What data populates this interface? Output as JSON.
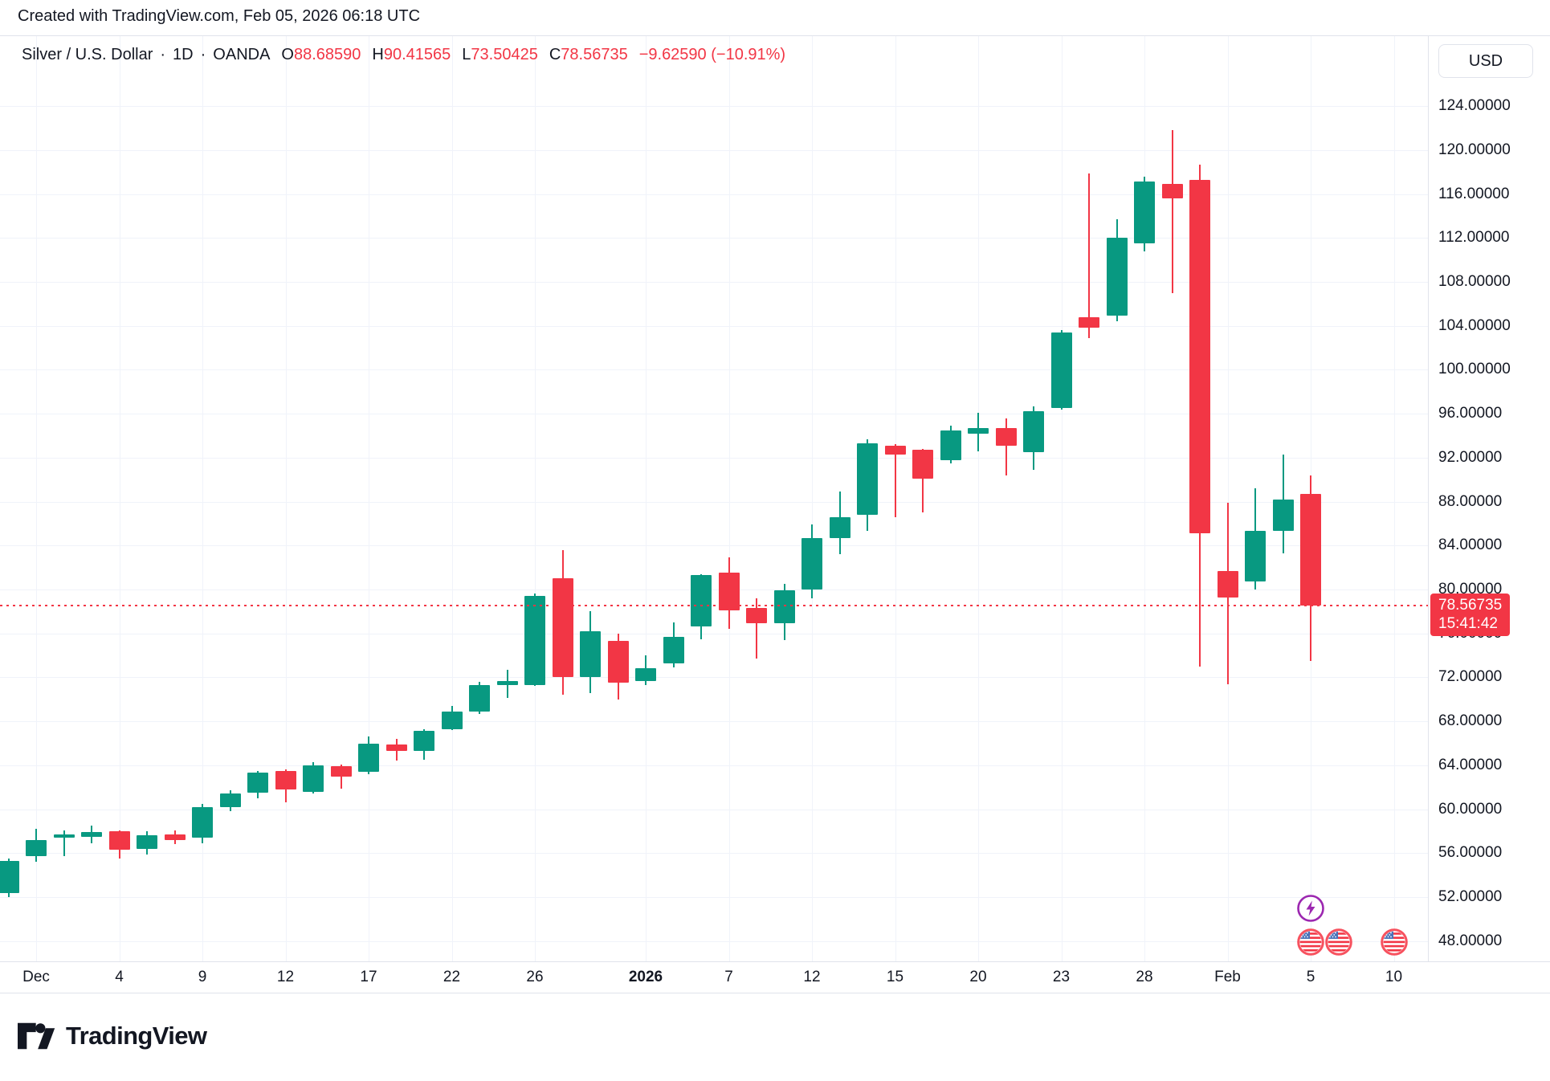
{
  "watermark": "Created with TradingView.com, Feb 05, 2026 06:18 UTC",
  "legend": {
    "title": "Silver / U.S. Dollar",
    "separator": "·",
    "interval": "1D",
    "exchange": "OANDA",
    "ohlc": [
      {
        "label": "O",
        "value": "88.68590"
      },
      {
        "label": "H",
        "value": "90.41565"
      },
      {
        "label": "L",
        "value": "73.50425"
      },
      {
        "label": "C",
        "value": "78.56735"
      }
    ],
    "change": "−9.62590 (−10.91%)"
  },
  "price_axis": {
    "currency_button": "USD",
    "labels": [
      "124.00000",
      "120.00000",
      "116.00000",
      "112.00000",
      "108.00000",
      "104.00000",
      "100.00000",
      "96.00000",
      "92.00000",
      "88.00000",
      "84.00000",
      "80.00000",
      "76.00000",
      "72.00000",
      "68.00000",
      "64.00000",
      "60.00000",
      "56.00000",
      "52.00000",
      "48.00000"
    ],
    "last_price_label": {
      "price": "78.56735",
      "countdown": "15:41:42"
    }
  },
  "time_axis": {
    "ticks": [
      {
        "label": "Dec",
        "index": 0,
        "bold": false
      },
      {
        "label": "4",
        "index": 3,
        "bold": false
      },
      {
        "label": "9",
        "index": 6,
        "bold": false
      },
      {
        "label": "12",
        "index": 9,
        "bold": false
      },
      {
        "label": "17",
        "index": 12,
        "bold": false
      },
      {
        "label": "22",
        "index": 15,
        "bold": false
      },
      {
        "label": "26",
        "index": 18,
        "bold": false
      },
      {
        "label": "2026",
        "index": 22,
        "bold": true
      },
      {
        "label": "7",
        "index": 25,
        "bold": false
      },
      {
        "label": "12",
        "index": 28,
        "bold": false
      },
      {
        "label": "15",
        "index": 31,
        "bold": false
      },
      {
        "label": "20",
        "index": 34,
        "bold": false
      },
      {
        "label": "23",
        "index": 37,
        "bold": false
      },
      {
        "label": "28",
        "index": 40,
        "bold": false
      },
      {
        "label": "Feb",
        "index": 43,
        "bold": false
      },
      {
        "label": "5",
        "index": 46,
        "bold": false
      },
      {
        "label": "10",
        "index": 49,
        "bold": false
      }
    ]
  },
  "event_markers": [
    {
      "icon": "lightning-icon",
      "index": 46,
      "row": "upper"
    },
    {
      "icon": "us-flag-icon",
      "index": 46,
      "row": "lower"
    },
    {
      "icon": "us-flag-icon",
      "index": 47,
      "row": "lower"
    },
    {
      "icon": "us-flag-icon",
      "index": 49,
      "row": "lower"
    }
  ],
  "logo_text": "TradingView",
  "colors": {
    "up": "#089981",
    "down": "#F23645",
    "grid": "#F0F3FA",
    "axis_text": "#131722",
    "border": "#E0E3EB",
    "accent_red": "#F23645",
    "event_purple": "#9C27B0",
    "flag_ring": "#F7525F",
    "flag_blue": "#4A72B8"
  },
  "chart_data": {
    "type": "candlestick",
    "title": "Silver / U.S. Dollar",
    "interval": "1D",
    "exchange": "OANDA",
    "grid": true,
    "legend_position": "top-left",
    "ylim": [
      46.2,
      130.4
    ],
    "price_line": {
      "value": 78.56735,
      "countdown": "15:41:42"
    },
    "last_bar": {
      "open": 88.6859,
      "high": 90.41565,
      "low": 73.50425,
      "close": 78.56735,
      "change": -9.6259,
      "change_pct": -10.91
    },
    "candles": [
      {
        "date": "Nov 28",
        "o": 52.4,
        "h": 55.5,
        "l": 52.0,
        "c": 55.3
      },
      {
        "date": "Dec 1",
        "o": 55.7,
        "h": 58.2,
        "l": 55.2,
        "c": 57.2
      },
      {
        "date": "Dec 2",
        "o": 57.4,
        "h": 58.1,
        "l": 55.7,
        "c": 57.7
      },
      {
        "date": "Dec 3",
        "o": 57.5,
        "h": 58.5,
        "l": 56.9,
        "c": 57.9
      },
      {
        "date": "Dec 4",
        "o": 58.0,
        "h": 58.1,
        "l": 55.5,
        "c": 56.3
      },
      {
        "date": "Dec 5",
        "o": 56.4,
        "h": 58.0,
        "l": 55.9,
        "c": 57.6
      },
      {
        "date": "Dec 8",
        "o": 57.7,
        "h": 58.1,
        "l": 56.8,
        "c": 57.2
      },
      {
        "date": "Dec 9",
        "o": 57.4,
        "h": 60.5,
        "l": 56.9,
        "c": 60.2
      },
      {
        "date": "Dec 10",
        "o": 60.2,
        "h": 61.7,
        "l": 59.8,
        "c": 61.4
      },
      {
        "date": "Dec 11",
        "o": 61.5,
        "h": 63.5,
        "l": 61.0,
        "c": 63.3
      },
      {
        "date": "Dec 12",
        "o": 63.5,
        "h": 63.6,
        "l": 60.6,
        "c": 61.8
      },
      {
        "date": "Dec 15",
        "o": 61.6,
        "h": 64.3,
        "l": 61.4,
        "c": 64.0
      },
      {
        "date": "Dec 16",
        "o": 63.9,
        "h": 64.1,
        "l": 61.9,
        "c": 63.0
      },
      {
        "date": "Dec 17",
        "o": 63.4,
        "h": 66.6,
        "l": 63.2,
        "c": 66.0
      },
      {
        "date": "Dec 18",
        "o": 65.9,
        "h": 66.4,
        "l": 64.4,
        "c": 65.3
      },
      {
        "date": "Dec 19",
        "o": 65.3,
        "h": 67.3,
        "l": 64.5,
        "c": 67.1
      },
      {
        "date": "Dec 22",
        "o": 67.3,
        "h": 69.4,
        "l": 67.2,
        "c": 68.9
      },
      {
        "date": "Dec 23",
        "o": 68.9,
        "h": 71.6,
        "l": 68.7,
        "c": 71.3
      },
      {
        "date": "Dec 24",
        "o": 71.3,
        "h": 72.7,
        "l": 70.1,
        "c": 71.7
      },
      {
        "date": "Dec 26",
        "o": 71.3,
        "h": 79.6,
        "l": 71.2,
        "c": 79.4
      },
      {
        "date": "Dec 29",
        "o": 81.0,
        "h": 83.6,
        "l": 70.4,
        "c": 72.0
      },
      {
        "date": "Dec 30",
        "o": 72.0,
        "h": 78.0,
        "l": 70.6,
        "c": 76.2
      },
      {
        "date": "Dec 31",
        "o": 75.3,
        "h": 76.0,
        "l": 70.0,
        "c": 71.5
      },
      {
        "date": "Jan 2",
        "o": 71.7,
        "h": 74.0,
        "l": 71.3,
        "c": 72.8
      },
      {
        "date": "Jan 5",
        "o": 73.3,
        "h": 77.0,
        "l": 72.9,
        "c": 75.7
      },
      {
        "date": "Jan 6",
        "o": 76.6,
        "h": 81.4,
        "l": 75.5,
        "c": 81.3
      },
      {
        "date": "Jan 7",
        "o": 81.5,
        "h": 82.9,
        "l": 76.4,
        "c": 78.1
      },
      {
        "date": "Jan 8",
        "o": 78.3,
        "h": 79.2,
        "l": 73.7,
        "c": 76.9
      },
      {
        "date": "Jan 9",
        "o": 76.9,
        "h": 80.5,
        "l": 75.4,
        "c": 79.9
      },
      {
        "date": "Jan 12",
        "o": 80.0,
        "h": 85.9,
        "l": 79.2,
        "c": 84.7
      },
      {
        "date": "Jan 13",
        "o": 84.7,
        "h": 88.9,
        "l": 83.2,
        "c": 86.6
      },
      {
        "date": "Jan 14",
        "o": 86.8,
        "h": 93.7,
        "l": 85.3,
        "c": 93.3
      },
      {
        "date": "Jan 15",
        "o": 93.1,
        "h": 93.2,
        "l": 86.6,
        "c": 92.3
      },
      {
        "date": "Jan 16",
        "o": 92.7,
        "h": 92.8,
        "l": 87.0,
        "c": 90.1
      },
      {
        "date": "Jan 19",
        "o": 91.8,
        "h": 94.9,
        "l": 91.5,
        "c": 94.5
      },
      {
        "date": "Jan 20",
        "o": 94.2,
        "h": 96.1,
        "l": 92.6,
        "c": 94.7
      },
      {
        "date": "Jan 21",
        "o": 94.7,
        "h": 95.6,
        "l": 90.4,
        "c": 93.1
      },
      {
        "date": "Jan 22",
        "o": 92.5,
        "h": 96.7,
        "l": 90.9,
        "c": 96.2
      },
      {
        "date": "Jan 23",
        "o": 96.5,
        "h": 103.6,
        "l": 96.4,
        "c": 103.4
      },
      {
        "date": "Jan 26",
        "o": 104.8,
        "h": 117.9,
        "l": 102.9,
        "c": 103.8
      },
      {
        "date": "Jan 27",
        "o": 104.9,
        "h": 113.7,
        "l": 104.4,
        "c": 112.0
      },
      {
        "date": "Jan 28",
        "o": 111.5,
        "h": 117.6,
        "l": 110.8,
        "c": 117.1
      },
      {
        "date": "Jan 29",
        "o": 116.9,
        "h": 121.8,
        "l": 107.0,
        "c": 115.6
      },
      {
        "date": "Jan 30",
        "o": 117.3,
        "h": 118.7,
        "l": 73.0,
        "c": 85.1
      },
      {
        "date": "Feb 2",
        "o": 81.7,
        "h": 87.9,
        "l": 71.4,
        "c": 79.3
      },
      {
        "date": "Feb 3",
        "o": 80.7,
        "h": 89.2,
        "l": 80.0,
        "c": 85.3
      },
      {
        "date": "Feb 4",
        "o": 85.3,
        "h": 92.3,
        "l": 83.3,
        "c": 88.2
      },
      {
        "date": "Feb 5",
        "o": 88.6859,
        "h": 90.41565,
        "l": 73.50425,
        "c": 78.56735
      }
    ]
  }
}
